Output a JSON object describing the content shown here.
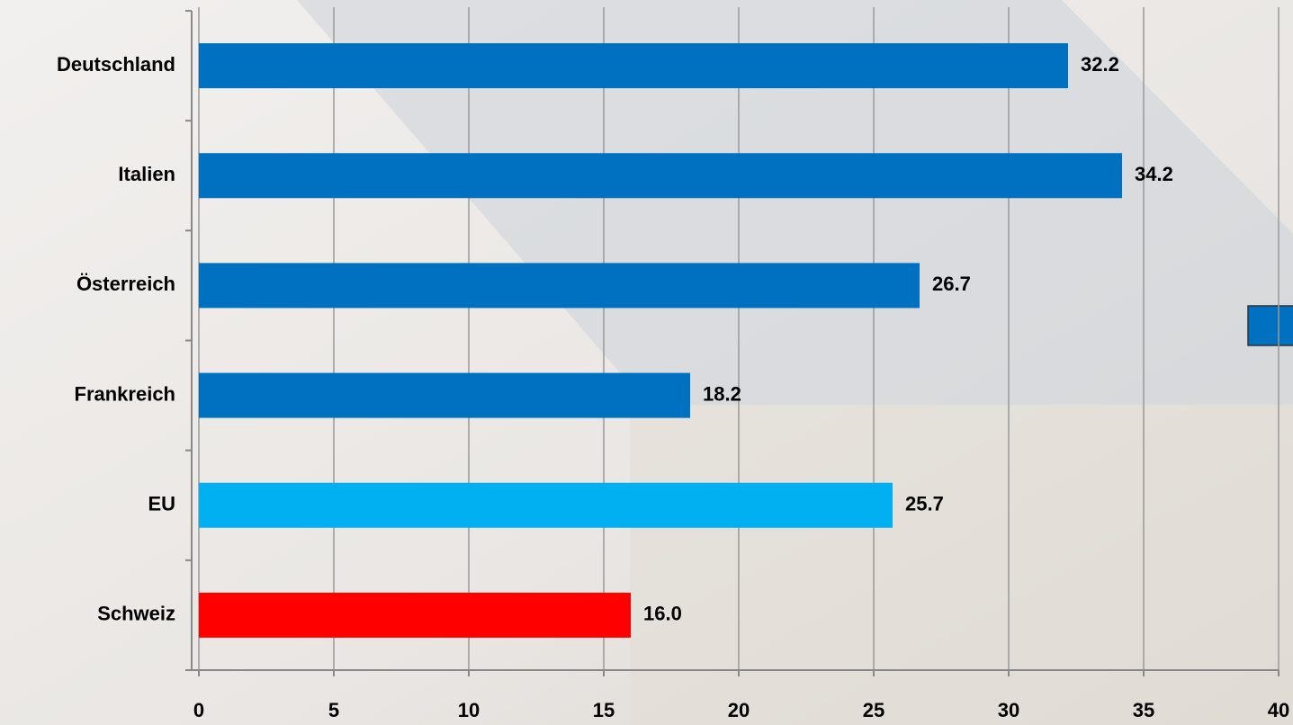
{
  "chart_data": {
    "type": "bar",
    "orientation": "horizontal",
    "categories": [
      "Deutschland",
      "Italien",
      "Österreich",
      "Frankreich",
      "EU",
      "Schweiz"
    ],
    "values": [
      32.2,
      34.2,
      26.7,
      18.2,
      25.7,
      16.0
    ],
    "value_labels": [
      "32.2",
      "34.2",
      "26.7",
      "18.2",
      "25.7",
      "16.0"
    ],
    "colors": [
      "#0070c0",
      "#0070c0",
      "#0070c0",
      "#0070c0",
      "#00b0f0",
      "#ff0000"
    ],
    "xlim": [
      0,
      40
    ],
    "xticks": [
      0,
      5,
      10,
      15,
      20,
      25,
      30,
      35,
      40
    ],
    "grid": true
  }
}
